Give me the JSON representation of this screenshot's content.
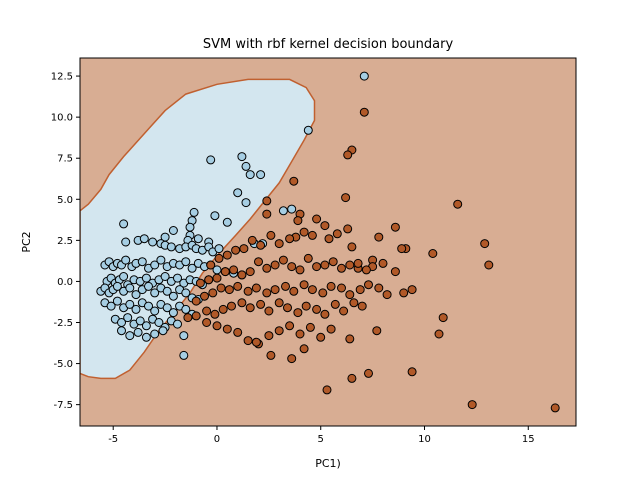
{
  "chart_data": {
    "type": "scatter",
    "title": "SVM with rbf kernel decision boundary",
    "xlabel": "PC1)",
    "ylabel": "PC2",
    "xlim": [
      -6.6,
      17.3
    ],
    "ylim": [
      -8.8,
      13.6
    ],
    "xticks": [
      "-5",
      "0",
      "5",
      "10",
      "15"
    ],
    "xtick_values": [
      -5,
      0,
      5,
      10,
      15
    ],
    "yticks": [
      "-7.5",
      "-5.0",
      "-2.5",
      "0.0",
      "2.5",
      "5.0",
      "7.5",
      "10.0",
      "12.5"
    ],
    "ytick_values": [
      -7.5,
      -5.0,
      -2.5,
      0.0,
      2.5,
      5.0,
      7.5,
      10.0,
      12.5
    ],
    "grid": false,
    "colors": {
      "region_class_0": "#d3e6ef",
      "region_class_1": "#d8ad93",
      "boundary": "#c06030",
      "point_class_0": "#a6cee3",
      "point_class_1": "#b15928",
      "point_edge": "#000000"
    },
    "decision_region_class_0": [
      [
        -6.6,
        4.3
      ],
      [
        -6.2,
        4.7
      ],
      [
        -5.6,
        5.6
      ],
      [
        -5.2,
        6.5
      ],
      [
        -4.5,
        7.6
      ],
      [
        -3.5,
        9.0
      ],
      [
        -2.5,
        10.4
      ],
      [
        -1.5,
        11.4
      ],
      [
        0.0,
        12.0
      ],
      [
        1.5,
        12.3
      ],
      [
        3.5,
        12.3
      ],
      [
        4.3,
        11.8
      ],
      [
        4.7,
        11.0
      ],
      [
        4.7,
        9.8
      ],
      [
        4.2,
        8.6
      ],
      [
        3.6,
        7.3
      ],
      [
        3.0,
        6.0
      ],
      [
        2.3,
        4.9
      ],
      [
        1.6,
        3.8
      ],
      [
        0.9,
        2.8
      ],
      [
        0.1,
        1.7
      ],
      [
        -0.7,
        0.5
      ],
      [
        -1.3,
        -0.7
      ],
      [
        -2.0,
        -1.8
      ],
      [
        -2.8,
        -3.0
      ],
      [
        -3.5,
        -4.3
      ],
      [
        -4.2,
        -5.4
      ],
      [
        -4.9,
        -5.9
      ],
      [
        -5.6,
        -5.9
      ],
      [
        -6.2,
        -5.8
      ],
      [
        -6.6,
        -5.6
      ]
    ],
    "series": [
      {
        "name": "",
        "class": 0,
        "x": [
          7.1,
          4.4,
          -0.3,
          1.2,
          -1.1,
          1.0,
          1.4,
          1.6,
          2.1,
          -0.1,
          0.5,
          -1.2,
          1.4,
          -1.3,
          -4.5,
          -2.1,
          -1.3,
          -2.5,
          -1.4,
          -0.9,
          -0.4,
          3.2,
          3.6,
          2.2,
          1.8,
          -4.4,
          -3.8,
          -3.5,
          -3.1,
          -2.7,
          -2.5,
          -2.2,
          -1.8,
          -1.5,
          -1.2,
          -1.0,
          -0.7,
          -0.4,
          -0.2,
          0.1,
          -5.4,
          -5.2,
          -5.0,
          -4.8,
          -4.6,
          -4.4,
          -4.1,
          -3.9,
          -3.6,
          -3.3,
          -3.0,
          -2.7,
          -2.4,
          -2.1,
          -1.8,
          -1.5,
          -1.2,
          -0.9,
          -0.6,
          -0.3,
          0.0,
          0.4,
          0.8,
          1.2,
          -5.3,
          -5.1,
          -4.9,
          -4.7,
          -4.5,
          -4.3,
          -4.0,
          -3.7,
          -3.4,
          -3.1,
          -2.8,
          -2.5,
          -2.2,
          -1.9,
          -1.6,
          -1.3,
          -1.0,
          -0.7,
          -0.4,
          -5.6,
          -5.4,
          -5.2,
          -5.0,
          -4.8,
          -4.5,
          -4.2,
          -3.9,
          -3.6,
          -3.3,
          -3.0,
          -2.7,
          -2.4,
          -2.1,
          -1.8,
          -1.5,
          -1.2,
          -0.9,
          -5.4,
          -5.1,
          -4.8,
          -4.5,
          -4.2,
          -3.9,
          -3.6,
          -3.3,
          -3.0,
          -2.7,
          -2.4,
          -2.1,
          -1.8,
          -1.5,
          -1.2,
          -4.9,
          -4.6,
          -4.3,
          -4.0,
          -3.7,
          -3.4,
          -3.1,
          -2.8,
          -2.5,
          -2.2,
          -1.9,
          -4.6,
          -4.2,
          -3.8,
          -3.4,
          -3.0,
          -2.6,
          -1.6,
          -1.6
        ],
        "y": [
          12.5,
          9.2,
          7.4,
          7.6,
          4.2,
          5.4,
          7.0,
          6.5,
          6.5,
          4.0,
          3.6,
          3.7,
          4.8,
          3.3,
          3.5,
          3.1,
          2.8,
          2.7,
          2.5,
          2.6,
          2.4,
          4.3,
          4.4,
          2.3,
          2.3,
          2.4,
          2.5,
          2.6,
          2.4,
          2.3,
          2.2,
          2.1,
          2.0,
          2.1,
          2.2,
          2.0,
          1.9,
          2.1,
          1.8,
          2.0,
          1.0,
          1.2,
          0.9,
          1.1,
          1.0,
          1.3,
          0.9,
          1.1,
          1.2,
          0.8,
          1.0,
          1.3,
          0.9,
          1.1,
          1.0,
          1.2,
          0.8,
          1.1,
          0.9,
          1.0,
          0.7,
          0.6,
          0.5,
          0.4,
          0.0,
          0.2,
          -0.1,
          0.1,
          0.3,
          -0.2,
          0.1,
          0.0,
          0.2,
          -0.1,
          0.1,
          0.3,
          0.0,
          0.2,
          -0.1,
          0.1,
          0.0,
          -0.2,
          0.1,
          -0.6,
          -0.4,
          -0.7,
          -0.5,
          -0.3,
          -0.6,
          -0.4,
          -0.8,
          -0.5,
          -0.3,
          -0.7,
          -0.4,
          -0.6,
          -0.9,
          -0.5,
          -0.7,
          -1.0,
          -1.1,
          -1.3,
          -1.5,
          -1.2,
          -1.6,
          -1.4,
          -1.7,
          -1.3,
          -1.5,
          -1.8,
          -1.4,
          -1.6,
          -1.9,
          -1.5,
          -1.7,
          -2.0,
          -2.3,
          -2.5,
          -2.2,
          -2.6,
          -2.4,
          -2.7,
          -2.3,
          -2.5,
          -2.8,
          -2.4,
          -2.6,
          -3.0,
          -3.3,
          -3.1,
          -3.4,
          -3.2,
          -3.0,
          -4.5,
          -3.3
        ]
      },
      {
        "name": "",
        "class": 1,
        "x": [
          7.1,
          6.5,
          6.3,
          3.7,
          6.2,
          2.4,
          4.0,
          2.4,
          3.9,
          4.8,
          5.2,
          6.3,
          8.6,
          9.1,
          11.6,
          12.9,
          13.1,
          10.4,
          10.9,
          9.4,
          9.0,
          7.8,
          7.5,
          6.8,
          6.5,
          5.8,
          5.4,
          4.6,
          4.2,
          3.8,
          3.5,
          3.0,
          2.6,
          2.1,
          1.7,
          1.3,
          0.9,
          0.5,
          0.1,
          -0.3,
          8.9,
          8.6,
          8.0,
          7.5,
          7.2,
          6.8,
          6.4,
          6.0,
          5.6,
          5.2,
          4.8,
          4.4,
          4.0,
          3.6,
          3.2,
          2.8,
          2.4,
          2.0,
          1.6,
          1.2,
          0.8,
          0.4,
          0.0,
          -0.4,
          -0.8,
          8.2,
          7.8,
          7.3,
          6.9,
          6.4,
          6.0,
          5.5,
          5.1,
          4.6,
          4.2,
          3.7,
          3.3,
          2.8,
          2.4,
          1.9,
          1.5,
          1.0,
          0.6,
          0.2,
          -0.2,
          -0.6,
          -1.0,
          7.0,
          6.6,
          6.1,
          5.7,
          5.2,
          4.8,
          4.3,
          3.9,
          3.4,
          3.0,
          2.5,
          2.1,
          1.6,
          1.2,
          0.7,
          0.3,
          -0.1,
          -0.5,
          -1.0,
          -1.4,
          7.7,
          6.4,
          5.5,
          5.0,
          4.5,
          4.0,
          3.5,
          3.0,
          2.5,
          2.0,
          1.5,
          1.0,
          0.5,
          0.0,
          -0.5,
          12.3,
          16.3,
          5.3,
          6.5,
          7.3,
          9.4,
          10.7,
          4.2,
          3.6,
          2.6,
          1.9
        ],
        "y": [
          10.3,
          8.0,
          7.7,
          6.1,
          5.1,
          4.9,
          4.1,
          4.1,
          3.7,
          3.8,
          3.4,
          3.2,
          3.3,
          2.0,
          4.7,
          2.3,
          1.0,
          1.7,
          -2.2,
          -0.5,
          -0.7,
          2.7,
          1.3,
          0.8,
          2.1,
          2.9,
          2.6,
          2.8,
          3.0,
          2.7,
          2.6,
          2.3,
          2.8,
          2.2,
          2.5,
          2.0,
          1.9,
          1.6,
          1.4,
          1.0,
          2.0,
          0.6,
          1.1,
          0.9,
          0.7,
          1.1,
          1.0,
          0.8,
          1.2,
          1.0,
          0.9,
          1.4,
          0.7,
          0.9,
          1.3,
          1.0,
          0.8,
          1.2,
          0.6,
          0.4,
          0.7,
          0.6,
          0.2,
          0.1,
          -0.1,
          -0.8,
          -0.4,
          -0.2,
          -0.5,
          -0.8,
          -0.4,
          -0.3,
          -0.7,
          -0.5,
          -0.2,
          -0.6,
          -0.3,
          -0.5,
          -0.7,
          -0.4,
          -0.6,
          -0.3,
          -0.5,
          -0.4,
          -0.7,
          -0.9,
          -1.2,
          -1.5,
          -1.3,
          -1.8,
          -1.4,
          -2.0,
          -1.7,
          -1.5,
          -1.9,
          -1.6,
          -1.3,
          -1.8,
          -1.4,
          -1.6,
          -1.3,
          -1.5,
          -1.7,
          -2.0,
          -1.8,
          -2.1,
          -2.2,
          -3.0,
          -3.5,
          -2.9,
          -3.4,
          -2.8,
          -3.2,
          -2.7,
          -3.0,
          -3.3,
          -3.8,
          -3.6,
          -3.1,
          -2.9,
          -2.7,
          -2.5,
          -7.5,
          -7.7,
          -6.6,
          -5.9,
          -5.6,
          -5.5,
          -3.2,
          -4.1,
          -4.7,
          -4.5,
          -3.7
        ]
      }
    ]
  }
}
